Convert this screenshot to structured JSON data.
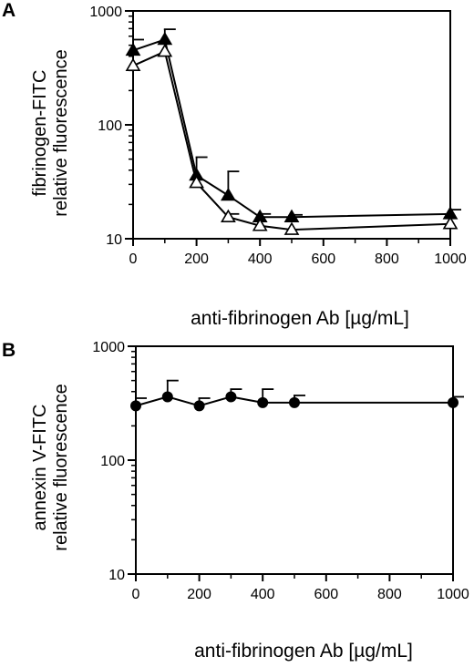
{
  "chart_data": [
    {
      "panel": "A",
      "type": "line",
      "scale_y": "log",
      "ylabel": [
        "fibrinogen-FITC",
        "relative fluorescence"
      ],
      "xlabel": "anti-fibrinogen Ab [µg/mL]",
      "xlim": [
        0,
        1000
      ],
      "ylim": [
        10,
        1000
      ],
      "x_ticks": [
        0,
        200,
        400,
        600,
        800,
        1000
      ],
      "y_ticks": [
        10,
        100,
        1000
      ],
      "grid": false,
      "series": [
        {
          "marker": "filled-triangle",
          "x": [
            0,
            100,
            200,
            300,
            400,
            500,
            1000
          ],
          "y": [
            450,
            560,
            36,
            24,
            15.5,
            15.5,
            16.5
          ],
          "error_upper": [
            560,
            690,
            52,
            39,
            16.5,
            16.2,
            18
          ]
        },
        {
          "marker": "open-triangle",
          "x": [
            0,
            100,
            200,
            300,
            400,
            500,
            1000
          ],
          "y": [
            330,
            440,
            31,
            15.5,
            13,
            12,
            13.5
          ],
          "error_upper": [
            null,
            null,
            null,
            16.5,
            null,
            null,
            null
          ]
        }
      ]
    },
    {
      "panel": "B",
      "type": "line",
      "scale_y": "log",
      "ylabel": [
        "annexin V-FITC",
        "relative fluorescence"
      ],
      "xlabel": "anti-fibrinogen Ab [µg/mL]",
      "xlim": [
        0,
        1000
      ],
      "ylim": [
        10,
        1000
      ],
      "x_ticks": [
        0,
        200,
        400,
        600,
        800,
        1000
      ],
      "y_ticks": [
        10,
        100,
        1000
      ],
      "grid": false,
      "series": [
        {
          "marker": "filled-circle",
          "x": [
            0,
            100,
            200,
            300,
            400,
            500,
            1000
          ],
          "y": [
            300,
            360,
            300,
            360,
            320,
            320,
            320
          ],
          "error_upper": [
            350,
            500,
            350,
            420,
            420,
            370,
            360
          ]
        }
      ]
    }
  ]
}
